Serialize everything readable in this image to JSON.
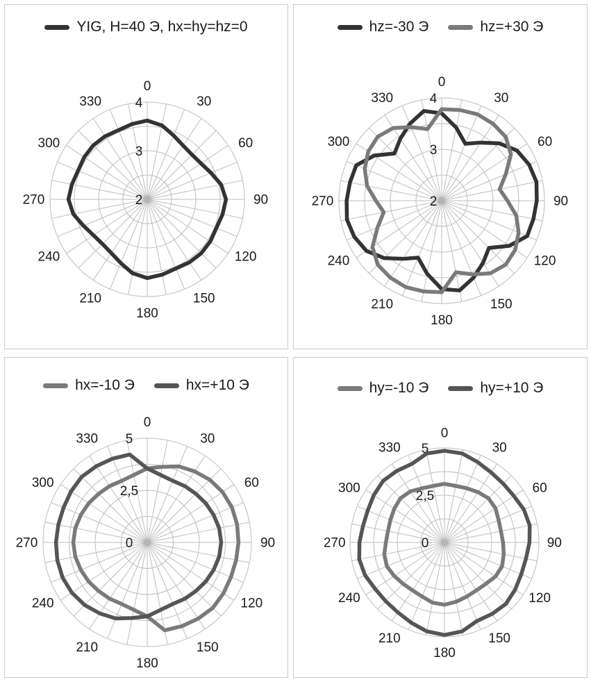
{
  "colors": {
    "dark": "#333333",
    "mid": "#555555",
    "light": "#7a7a7a",
    "grid": "#bdbdbd"
  },
  "chart_data": [
    {
      "type": "radar",
      "angle_labels": [
        "0",
        "30",
        "60",
        "90",
        "120",
        "150",
        "180",
        "210",
        "240",
        "270",
        "300",
        "330"
      ],
      "radial_labels": [
        "2",
        "3",
        "4"
      ],
      "rlim": [
        2,
        4
      ],
      "series": [
        {
          "name": "YIG, H=40 Э, hx=hy=hz=0",
          "values": [
            3.62,
            3.55,
            3.42,
            3.33,
            3.3,
            3.33,
            3.42,
            3.55,
            3.62,
            3.58,
            3.54,
            3.56,
            3.57,
            3.56,
            3.54,
            3.58,
            3.62,
            3.55,
            3.42,
            3.33,
            3.3,
            3.33,
            3.42,
            3.55,
            3.62,
            3.58,
            3.54,
            3.56,
            3.57,
            3.56,
            3.54,
            3.58
          ]
        }
      ]
    },
    {
      "type": "radar",
      "angle_labels": [
        "0",
        "30",
        "60",
        "90",
        "120",
        "150",
        "180",
        "210",
        "240",
        "270",
        "300",
        "330"
      ],
      "radial_labels": [
        "2",
        "3",
        "4"
      ],
      "rlim": [
        2,
        4
      ],
      "series": [
        {
          "name": "hz=-30 Э",
          "values": [
            3.7,
            3.45,
            3.2,
            3.36,
            3.58,
            3.76,
            3.84,
            3.88,
            3.85,
            3.82,
            3.8,
            3.58,
            3.3,
            3.45,
            3.62,
            3.78,
            3.72,
            3.45,
            3.2,
            3.36,
            3.58,
            3.76,
            3.84,
            3.88,
            3.85,
            3.82,
            3.8,
            3.58,
            3.3,
            3.45,
            3.62,
            3.78
          ]
        },
        {
          "name": "hz=+30 Э",
          "values": [
            3.78,
            3.8,
            3.82,
            3.8,
            3.76,
            3.62,
            3.35,
            3.15,
            3.28,
            3.48,
            3.62,
            3.72,
            3.76,
            3.7,
            3.55,
            3.42,
            3.78,
            3.8,
            3.82,
            3.8,
            3.76,
            3.62,
            3.35,
            3.15,
            3.28,
            3.48,
            3.62,
            3.72,
            3.76,
            3.7,
            3.55,
            3.42
          ]
        }
      ]
    },
    {
      "type": "radar",
      "angle_labels": [
        "0",
        "30",
        "60",
        "90",
        "120",
        "150",
        "180",
        "210",
        "240",
        "270",
        "300",
        "330"
      ],
      "radial_labels": [
        "0",
        "2,5",
        "5"
      ],
      "rlim": [
        0,
        5
      ],
      "series": [
        {
          "name": "hx=-10 Э",
          "values": [
            3.55,
            3.7,
            3.95,
            4.1,
            4.25,
            4.35,
            4.4,
            4.4,
            4.38,
            4.35,
            4.35,
            4.4,
            4.45,
            4.4,
            4.35,
            4.3,
            3.55,
            3.3,
            3.2,
            3.25,
            3.3,
            3.38,
            3.45,
            3.52,
            3.55,
            3.52,
            3.45,
            3.38,
            3.3,
            3.25,
            3.2,
            3.3
          ]
        },
        {
          "name": "hx=+10 Э",
          "values": [
            3.55,
            3.3,
            3.2,
            3.25,
            3.3,
            3.38,
            3.45,
            3.52,
            3.55,
            3.52,
            3.45,
            3.38,
            3.3,
            3.25,
            3.2,
            3.3,
            3.55,
            3.7,
            3.95,
            4.1,
            4.25,
            4.35,
            4.4,
            4.4,
            4.38,
            4.35,
            4.35,
            4.4,
            4.45,
            4.4,
            4.35,
            4.3
          ]
        }
      ]
    },
    {
      "type": "radar",
      "angle_labels": [
        "0",
        "30",
        "60",
        "90",
        "120",
        "150",
        "180",
        "210",
        "240",
        "270",
        "300",
        "330"
      ],
      "radial_labels": [
        "0",
        "2,5",
        "5"
      ],
      "rlim": [
        0,
        5
      ],
      "series": [
        {
          "name": "hy=-10 Э",
          "values": [
            3.1,
            3.05,
            3.1,
            3.2,
            3.3,
            3.25,
            3.1,
            3.05,
            3.1,
            3.2,
            3.3,
            3.25,
            3.1,
            3.05,
            3.1,
            3.2,
            3.3,
            3.25,
            3.1,
            3.05,
            3.1,
            3.2,
            3.3,
            3.25,
            3.1,
            3.05,
            3.1,
            3.2,
            3.3,
            3.25,
            3.1,
            3.05
          ]
        },
        {
          "name": "hy=+10 Э",
          "values": [
            4.85,
            4.8,
            4.6,
            4.45,
            4.4,
            4.42,
            4.55,
            4.6,
            4.5,
            4.4,
            4.4,
            4.5,
            4.6,
            4.55,
            4.5,
            4.8,
            4.9,
            4.8,
            4.6,
            4.45,
            4.4,
            4.42,
            4.55,
            4.6,
            4.5,
            4.4,
            4.4,
            4.5,
            4.6,
            4.55,
            4.5,
            4.8
          ]
        }
      ]
    }
  ]
}
